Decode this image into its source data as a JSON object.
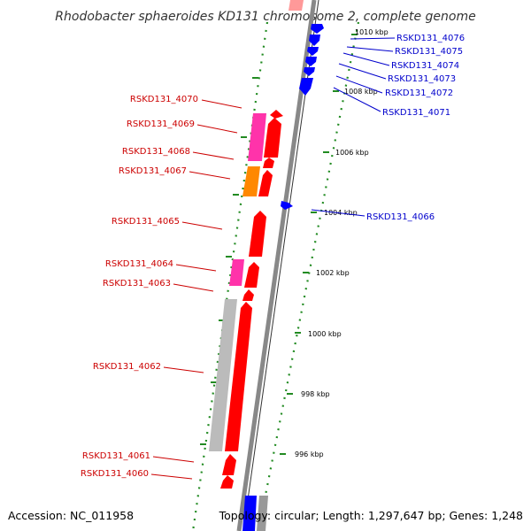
{
  "title": "Rhodobacter sphaeroides KD131 chromosome 2, complete genome",
  "accession": "Accession: NC_011958",
  "summary": "Topology: circular; Length: 1,297,647 bp; Genes: 1,248",
  "colors": {
    "forward_gene": "#ff0000",
    "reverse_gene": "#0000ff",
    "pink_feature": "#ff33aa",
    "orange_feature": "#ff8800",
    "gray_feature": "#bbbbbb",
    "ruler_dot": "#228b22",
    "backbone": "#888888",
    "left_label": "#cc0000",
    "right_label": "#0000cc"
  },
  "scale_ticks": [
    "1010 kbp",
    "1008 kbp",
    "1006 kbp",
    "1004 kbp",
    "1002 kbp",
    "1000 kbp",
    "998 kbp",
    "996 kbp"
  ],
  "left_labels": [
    "RSKD131_4070",
    "RSKD131_4069",
    "RSKD131_4068",
    "RSKD131_4067",
    "RSKD131_4065",
    "RSKD131_4064",
    "RSKD131_4063",
    "RSKD131_4062",
    "RSKD131_4061",
    "RSKD131_4060"
  ],
  "right_labels": [
    "RSKD131_4076",
    "RSKD131_4075",
    "RSKD131_4074",
    "RSKD131_4073",
    "RSKD131_4072",
    "RSKD131_4071",
    "RSKD131_4066"
  ]
}
